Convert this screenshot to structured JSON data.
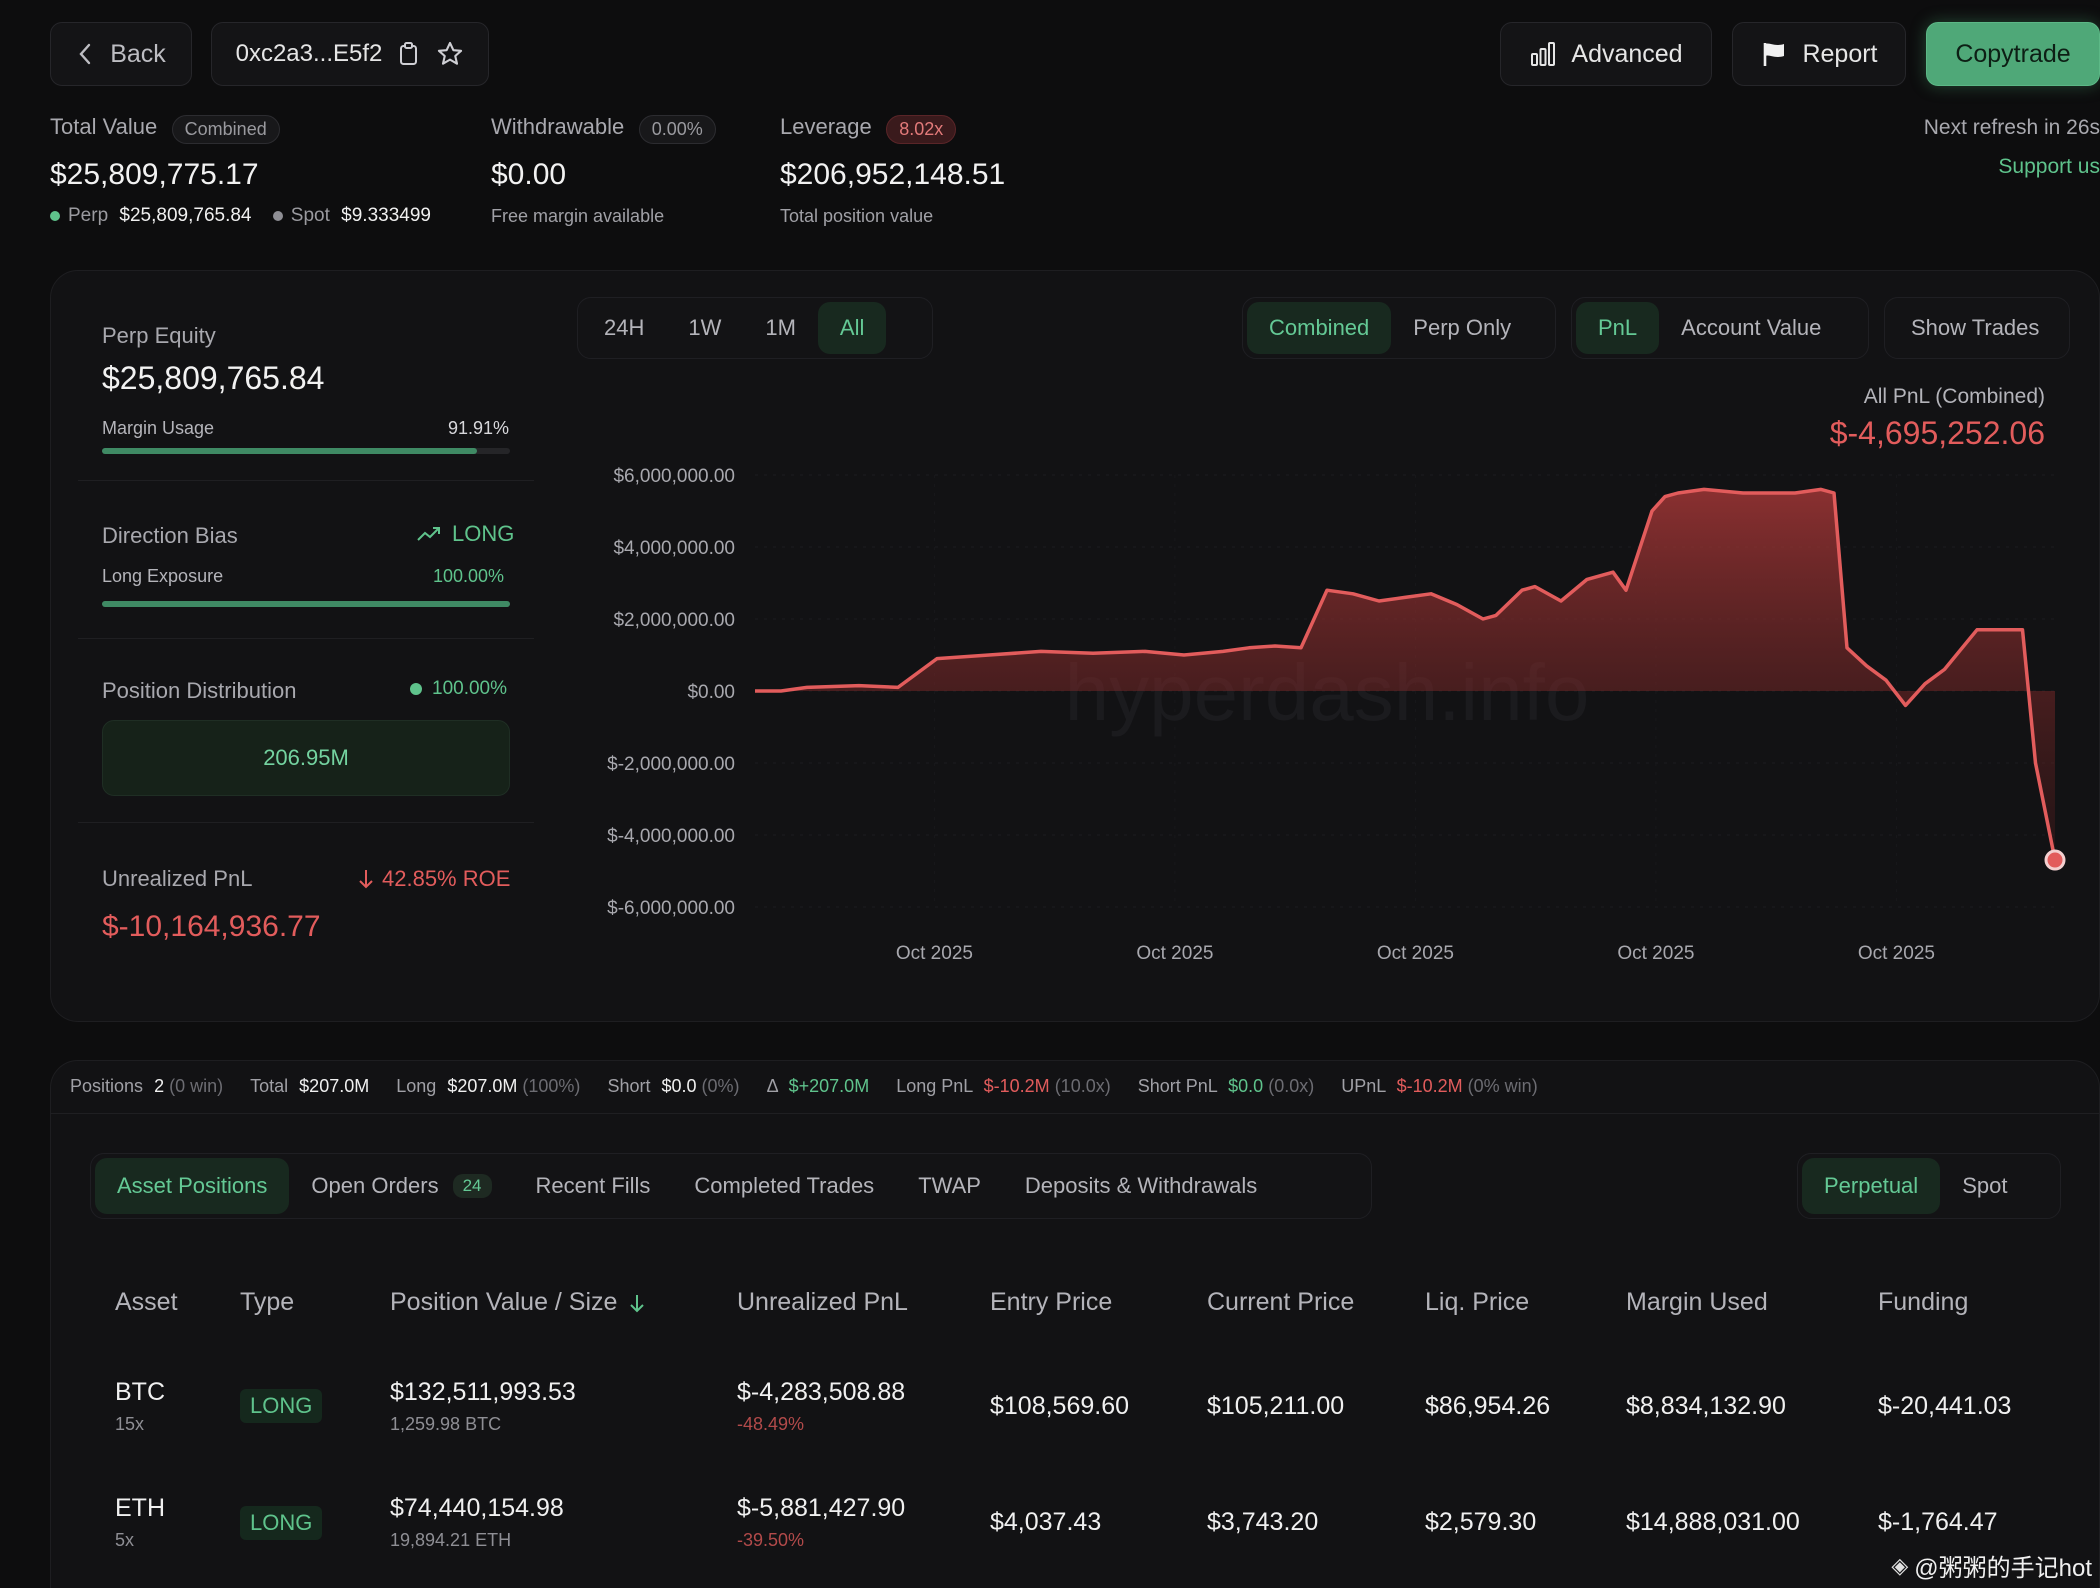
{
  "header": {
    "back_label": "Back",
    "address": "0xc2a3...E5f2",
    "advanced_label": "Advanced",
    "report_label": "Report",
    "copytrade_label": "Copytrade",
    "next_refresh": "Next refresh in 26s",
    "support_label": "Support us"
  },
  "summary": {
    "total_value_label": "Total Value",
    "total_value_pill": "Combined",
    "total_value": "$25,809,775.17",
    "perp_label": "Perp",
    "perp_value": "$25,809,765.84",
    "spot_label": "Spot",
    "spot_value": "$9.333499",
    "withdrawable_label": "Withdrawable",
    "withdrawable_pill": "0.00%",
    "withdrawable_value": "$0.00",
    "withdrawable_sub": "Free margin available",
    "leverage_label": "Leverage",
    "leverage_pill": "8.02x",
    "leverage_value": "$206,952,148.51",
    "leverage_sub": "Total position value"
  },
  "side": {
    "perp_equity_label": "Perp Equity",
    "perp_equity": "$25,809,765.84",
    "margin_usage_label": "Margin Usage",
    "margin_usage": "91.91%",
    "margin_usage_frac": 0.9191,
    "direction_bias_label": "Direction Bias",
    "direction_bias": "LONG",
    "long_exposure_label": "Long Exposure",
    "long_exposure": "100.00%",
    "long_exposure_frac": 1.0,
    "position_dist_label": "Position Distribution",
    "position_dist_pct": "100.00%",
    "position_dist_value": "206.95M",
    "upnl_label": "Unrealized PnL",
    "upnl_roe": "42.85% ROE",
    "upnl_value": "$-10,164,936.77"
  },
  "chart_controls": {
    "ranges": [
      "24H",
      "1W",
      "1M",
      "All"
    ],
    "active_range": "All",
    "modes": [
      "Combined",
      "Perp Only"
    ],
    "active_mode": "Combined",
    "metrics": [
      "PnL",
      "Account Value"
    ],
    "active_metric": "PnL",
    "show_trades": "Show Trades"
  },
  "chart_data": {
    "type": "area",
    "title": "All PnL (Combined)",
    "headline_value": "$-4,695,252.06",
    "y_tick_labels": [
      "$6,000,000.00",
      "$4,000,000.00",
      "$2,000,000.00",
      "$0.00",
      "$-2,000,000.00",
      "$-4,000,000.00",
      "$-6,000,000.00"
    ],
    "y_ticks": [
      6000000,
      4000000,
      2000000,
      0,
      -2000000,
      -4000000,
      -6000000
    ],
    "ylim": [
      -6000000,
      6000000
    ],
    "x_tick_labels": [
      "Oct 2025",
      "Oct 2025",
      "Oct 2025",
      "Oct 2025",
      "Oct 2025"
    ],
    "x": [
      0,
      0.02,
      0.04,
      0.08,
      0.11,
      0.14,
      0.18,
      0.22,
      0.26,
      0.3,
      0.33,
      0.36,
      0.38,
      0.4,
      0.42,
      0.44,
      0.46,
      0.48,
      0.5,
      0.52,
      0.54,
      0.56,
      0.57,
      0.59,
      0.6,
      0.62,
      0.64,
      0.66,
      0.67,
      0.69,
      0.7,
      0.71,
      0.73,
      0.76,
      0.78,
      0.8,
      0.82,
      0.83,
      0.84,
      0.855,
      0.87,
      0.885,
      0.9,
      0.915,
      0.94,
      0.96,
      0.975,
      0.985,
      1.0
    ],
    "y": [
      0,
      0,
      100000,
      150000,
      100000,
      900000,
      1000000,
      1100000,
      1050000,
      1100000,
      1000000,
      1100000,
      1200000,
      1250000,
      1200000,
      2800000,
      2700000,
      2500000,
      2600000,
      2700000,
      2400000,
      2000000,
      2100000,
      2800000,
      2900000,
      2500000,
      3100000,
      3300000,
      2800000,
      5000000,
      5400000,
      5500000,
      5600000,
      5500000,
      5500000,
      5500000,
      5600000,
      5500000,
      1200000,
      700000,
      300000,
      -400000,
      200000,
      600000,
      1700000,
      1700000,
      1700000,
      -2000000,
      -4695252
    ],
    "watermark": "hyperdash.info"
  },
  "stats_strip": {
    "positions_label": "Positions",
    "positions_count": "2",
    "positions_win": "(0 win)",
    "total_label": "Total",
    "total_value": "$207.0M",
    "long_label": "Long",
    "long_value": "$207.0M",
    "long_pct": "(100%)",
    "short_label": "Short",
    "short_value": "$0.0",
    "short_pct": "(0%)",
    "delta_label": "Δ",
    "delta_value": "$+207.0M",
    "longpnl_label": "Long PnL",
    "longpnl_value": "$-10.2M",
    "longpnl_x": "(10.0x)",
    "shortpnl_label": "Short PnL",
    "shortpnl_value": "$0.0",
    "shortpnl_x": "(0.0x)",
    "upnl_label": "UPnL",
    "upnl_value": "$-10.2M",
    "upnl_win": "(0% win)"
  },
  "tabs": {
    "asset_positions": "Asset Positions",
    "open_orders": "Open Orders",
    "open_orders_count": "24",
    "recent_fills": "Recent Fills",
    "completed_trades": "Completed Trades",
    "twap": "TWAP",
    "deposits": "Deposits & Withdrawals",
    "perpetual": "Perpetual",
    "spot": "Spot"
  },
  "table": {
    "headers": {
      "asset": "Asset",
      "type": "Type",
      "position_value": "Position Value / Size",
      "upnl": "Unrealized PnL",
      "entry": "Entry Price",
      "current": "Current Price",
      "liq": "Liq. Price",
      "margin": "Margin Used",
      "funding": "Funding"
    },
    "rows": [
      {
        "asset": "BTC",
        "lev": "15x",
        "type": "LONG",
        "value": "$132,511,993.53",
        "size": "1,259.98 BTC",
        "upnl": "$-4,283,508.88",
        "upnl_pct": "-48.49%",
        "entry": "$108,569.60",
        "current": "$105,211.00",
        "liq": "$86,954.26",
        "margin": "$8,834,132.90",
        "funding": "$-20,441.03"
      },
      {
        "asset": "ETH",
        "lev": "5x",
        "type": "LONG",
        "value": "$74,440,154.98",
        "size": "19,894.21 ETH",
        "upnl": "$-5,881,427.90",
        "upnl_pct": "-39.50%",
        "entry": "$4,037.43",
        "current": "$3,743.20",
        "liq": "$2,579.30",
        "margin": "$14,888,031.00",
        "funding": "$-1,764.47"
      }
    ]
  },
  "footer_watermark": "@粥粥的手记hot"
}
